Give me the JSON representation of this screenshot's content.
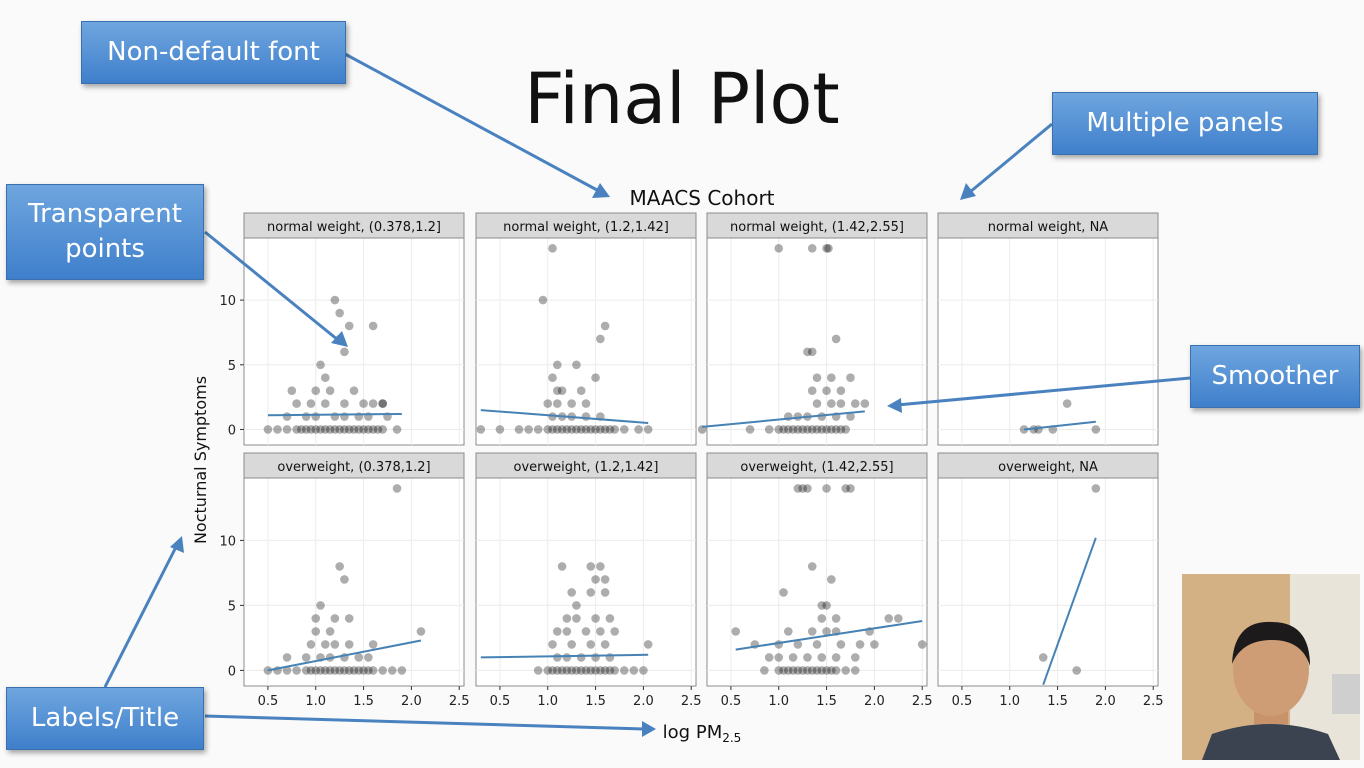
{
  "slide": {
    "title": "Final Plot"
  },
  "callouts": {
    "font": "Non-default font",
    "panels": "Multiple panels",
    "transparent_line1": "Transparent",
    "transparent_line2": "points",
    "smoother": "Smoother",
    "labels": "Labels/Title"
  },
  "colors": {
    "callout_fill": "#4a8ad4",
    "smoother": "#4682b4",
    "strip_fill": "#d9d9d9",
    "point": "#000000"
  },
  "chart_data": {
    "type": "scatter",
    "title": "MAACS Cohort",
    "xlabel_main": "log PM",
    "xlabel_sub": "2.5",
    "ylabel": "Nocturnal Symptoms",
    "xlim": [
      0.25,
      2.55
    ],
    "ylim": [
      -1.2,
      14.8
    ],
    "x_ticks": [
      "0.5",
      "1.0",
      "1.5",
      "2.0",
      "2.5"
    ],
    "y_ticks": [
      "0",
      "5",
      "10"
    ],
    "facets": [
      {
        "label": "normal weight, (0.378,1.2]",
        "points": [
          [
            0.5,
            0
          ],
          [
            0.6,
            0
          ],
          [
            0.7,
            0
          ],
          [
            0.8,
            0
          ],
          [
            0.85,
            0
          ],
          [
            0.9,
            0
          ],
          [
            0.95,
            0
          ],
          [
            1.0,
            0
          ],
          [
            1.05,
            0
          ],
          [
            1.1,
            0
          ],
          [
            1.15,
            0
          ],
          [
            0.7,
            1
          ],
          [
            0.9,
            1
          ],
          [
            1.0,
            1
          ],
          [
            0.8,
            2
          ],
          [
            0.95,
            2
          ],
          [
            1.1,
            2
          ],
          [
            1.0,
            3
          ],
          [
            0.75,
            3
          ],
          [
            1.05,
            5
          ],
          [
            1.1,
            4
          ],
          [
            1.15,
            3
          ],
          [
            1.2,
            0
          ],
          [
            1.25,
            0
          ],
          [
            1.3,
            0
          ],
          [
            1.35,
            0
          ],
          [
            1.4,
            0
          ],
          [
            1.45,
            0
          ],
          [
            1.5,
            0
          ],
          [
            1.55,
            0
          ],
          [
            1.6,
            0
          ],
          [
            1.65,
            0
          ],
          [
            1.7,
            0
          ],
          [
            1.2,
            1
          ],
          [
            1.3,
            1
          ],
          [
            1.45,
            1
          ],
          [
            1.55,
            1
          ],
          [
            1.3,
            2
          ],
          [
            1.5,
            2
          ],
          [
            1.6,
            2
          ],
          [
            1.7,
            2
          ],
          [
            1.4,
            3
          ],
          [
            1.25,
            7
          ],
          [
            1.3,
            6
          ],
          [
            1.35,
            8
          ],
          [
            1.6,
            8
          ],
          [
            1.2,
            10
          ],
          [
            1.25,
            9
          ],
          [
            1.85,
            0
          ],
          [
            1.75,
            1
          ],
          [
            1.7,
            2
          ]
        ],
        "smooth": [
          [
            0.5,
            1.1
          ],
          [
            1.9,
            1.2
          ]
        ]
      },
      {
        "label": "normal weight, (1.2,1.42]",
        "points": [
          [
            0.3,
            0
          ],
          [
            0.5,
            0
          ],
          [
            0.7,
            0
          ],
          [
            0.8,
            0
          ],
          [
            0.9,
            0
          ],
          [
            1.0,
            0
          ],
          [
            1.05,
            0
          ],
          [
            1.1,
            0
          ],
          [
            1.15,
            0
          ],
          [
            1.2,
            0
          ],
          [
            1.25,
            0
          ],
          [
            1.3,
            0
          ],
          [
            1.35,
            0
          ],
          [
            1.4,
            0
          ],
          [
            1.45,
            0
          ],
          [
            1.5,
            0
          ],
          [
            1.55,
            0
          ],
          [
            1.6,
            0
          ],
          [
            1.65,
            0
          ],
          [
            1.7,
            0
          ],
          [
            1.8,
            0
          ],
          [
            1.95,
            0
          ],
          [
            2.05,
            0
          ],
          [
            1.05,
            1
          ],
          [
            1.15,
            1
          ],
          [
            1.25,
            1
          ],
          [
            1.4,
            1
          ],
          [
            1.55,
            1
          ],
          [
            1.0,
            2
          ],
          [
            1.1,
            2
          ],
          [
            1.25,
            2
          ],
          [
            1.4,
            2
          ],
          [
            1.1,
            3
          ],
          [
            1.15,
            3
          ],
          [
            1.35,
            3
          ],
          [
            1.05,
            4
          ],
          [
            1.1,
            5
          ],
          [
            1.3,
            5
          ],
          [
            1.5,
            4
          ],
          [
            1.55,
            7
          ],
          [
            1.6,
            8
          ],
          [
            0.95,
            10
          ],
          [
            1.05,
            14
          ]
        ],
        "smooth": [
          [
            0.3,
            1.5
          ],
          [
            2.05,
            0.5
          ]
        ]
      },
      {
        "label": "normal weight, (1.42,2.55]",
        "points": [
          [
            0.2,
            0
          ],
          [
            0.7,
            0
          ],
          [
            0.9,
            0
          ],
          [
            1.0,
            0
          ],
          [
            1.05,
            0
          ],
          [
            1.1,
            0
          ],
          [
            1.15,
            0
          ],
          [
            1.2,
            0
          ],
          [
            1.25,
            0
          ],
          [
            1.3,
            0
          ],
          [
            1.35,
            0
          ],
          [
            1.4,
            0
          ],
          [
            1.45,
            0
          ],
          [
            1.5,
            0
          ],
          [
            1.55,
            0
          ],
          [
            1.6,
            0
          ],
          [
            1.65,
            0
          ],
          [
            1.7,
            0
          ],
          [
            1.1,
            1
          ],
          [
            1.2,
            1
          ],
          [
            1.3,
            1
          ],
          [
            1.45,
            1
          ],
          [
            1.6,
            1
          ],
          [
            1.75,
            1
          ],
          [
            1.4,
            2
          ],
          [
            1.55,
            2
          ],
          [
            1.65,
            2
          ],
          [
            1.8,
            2
          ],
          [
            1.9,
            2
          ],
          [
            1.35,
            3
          ],
          [
            1.5,
            3
          ],
          [
            1.65,
            3
          ],
          [
            1.4,
            4
          ],
          [
            1.55,
            4
          ],
          [
            1.75,
            4
          ],
          [
            1.3,
            6
          ],
          [
            1.35,
            6
          ],
          [
            1.6,
            7
          ],
          [
            1.0,
            14
          ],
          [
            1.35,
            14
          ],
          [
            1.5,
            14
          ],
          [
            1.52,
            14
          ]
        ],
        "smooth": [
          [
            0.2,
            0.2
          ],
          [
            1.9,
            1.4
          ]
        ]
      },
      {
        "label": "normal weight, NA",
        "points": [
          [
            1.15,
            0
          ],
          [
            1.25,
            0
          ],
          [
            1.3,
            0
          ],
          [
            1.45,
            0
          ],
          [
            1.9,
            0
          ],
          [
            1.6,
            2
          ]
        ],
        "smooth": [
          [
            1.15,
            0
          ],
          [
            1.9,
            0.6
          ]
        ]
      },
      {
        "label": "overweight, (0.378,1.2]",
        "points": [
          [
            0.5,
            0
          ],
          [
            0.6,
            0
          ],
          [
            0.7,
            0
          ],
          [
            0.8,
            0
          ],
          [
            0.9,
            0
          ],
          [
            0.95,
            0
          ],
          [
            1.0,
            0
          ],
          [
            1.05,
            0
          ],
          [
            1.1,
            0
          ],
          [
            1.15,
            0
          ],
          [
            1.2,
            0
          ],
          [
            1.25,
            0
          ],
          [
            1.3,
            0
          ],
          [
            1.35,
            0
          ],
          [
            1.4,
            0
          ],
          [
            1.45,
            0
          ],
          [
            1.5,
            0
          ],
          [
            1.55,
            0
          ],
          [
            1.6,
            0
          ],
          [
            1.7,
            0
          ],
          [
            1.8,
            0
          ],
          [
            1.9,
            0
          ],
          [
            0.7,
            1
          ],
          [
            0.9,
            1
          ],
          [
            1.05,
            1
          ],
          [
            1.15,
            1
          ],
          [
            1.3,
            1
          ],
          [
            1.45,
            1
          ],
          [
            1.55,
            1
          ],
          [
            0.95,
            2
          ],
          [
            1.1,
            2
          ],
          [
            1.2,
            2
          ],
          [
            1.35,
            2
          ],
          [
            1.6,
            2
          ],
          [
            1.0,
            3
          ],
          [
            1.15,
            3
          ],
          [
            1.2,
            4
          ],
          [
            1.35,
            4
          ],
          [
            1.0,
            4
          ],
          [
            1.05,
            5
          ],
          [
            1.25,
            8
          ],
          [
            1.3,
            7
          ],
          [
            1.85,
            14
          ],
          [
            2.1,
            3
          ]
        ],
        "smooth": [
          [
            0.5,
            0
          ],
          [
            2.1,
            2.3
          ]
        ]
      },
      {
        "label": "overweight, (1.2,1.42]",
        "points": [
          [
            0.9,
            0
          ],
          [
            1.0,
            0
          ],
          [
            1.05,
            0
          ],
          [
            1.1,
            0
          ],
          [
            1.15,
            0
          ],
          [
            1.2,
            0
          ],
          [
            1.25,
            0
          ],
          [
            1.3,
            0
          ],
          [
            1.35,
            0
          ],
          [
            1.4,
            0
          ],
          [
            1.45,
            0
          ],
          [
            1.5,
            0
          ],
          [
            1.55,
            0
          ],
          [
            1.6,
            0
          ],
          [
            1.65,
            0
          ],
          [
            1.7,
            0
          ],
          [
            1.8,
            0
          ],
          [
            1.9,
            0
          ],
          [
            2.0,
            0
          ],
          [
            1.1,
            1
          ],
          [
            1.2,
            1
          ],
          [
            1.35,
            1
          ],
          [
            1.5,
            1
          ],
          [
            1.65,
            1
          ],
          [
            1.05,
            2
          ],
          [
            1.25,
            2
          ],
          [
            1.45,
            2
          ],
          [
            1.6,
            2
          ],
          [
            2.05,
            2
          ],
          [
            1.1,
            3
          ],
          [
            1.2,
            3
          ],
          [
            1.4,
            3
          ],
          [
            1.55,
            3
          ],
          [
            1.7,
            3
          ],
          [
            1.2,
            4
          ],
          [
            1.3,
            4
          ],
          [
            1.5,
            4
          ],
          [
            1.65,
            4
          ],
          [
            1.3,
            5
          ],
          [
            1.25,
            6
          ],
          [
            1.45,
            6
          ],
          [
            1.6,
            6
          ],
          [
            1.5,
            7
          ],
          [
            1.6,
            7
          ],
          [
            1.15,
            8
          ],
          [
            1.45,
            8
          ],
          [
            1.55,
            8
          ]
        ],
        "smooth": [
          [
            0.3,
            1.0
          ],
          [
            2.05,
            1.2
          ]
        ]
      },
      {
        "label": "overweight, (1.42,2.55]",
        "points": [
          [
            0.55,
            3
          ],
          [
            0.75,
            2
          ],
          [
            0.85,
            0
          ],
          [
            0.9,
            1
          ],
          [
            1.0,
            0
          ],
          [
            1.05,
            0
          ],
          [
            1.1,
            0
          ],
          [
            1.15,
            0
          ],
          [
            1.2,
            0
          ],
          [
            1.25,
            0
          ],
          [
            1.3,
            0
          ],
          [
            1.35,
            0
          ],
          [
            1.4,
            0
          ],
          [
            1.45,
            0
          ],
          [
            1.5,
            0
          ],
          [
            1.55,
            0
          ],
          [
            1.6,
            0
          ],
          [
            1.7,
            0
          ],
          [
            1.8,
            0
          ],
          [
            1.0,
            1
          ],
          [
            1.15,
            1
          ],
          [
            1.3,
            1
          ],
          [
            1.45,
            1
          ],
          [
            1.6,
            1
          ],
          [
            1.8,
            1
          ],
          [
            1.0,
            2
          ],
          [
            1.2,
            2
          ],
          [
            1.4,
            2
          ],
          [
            1.65,
            2
          ],
          [
            1.85,
            2
          ],
          [
            2.0,
            2
          ],
          [
            2.5,
            2
          ],
          [
            1.1,
            3
          ],
          [
            1.35,
            3
          ],
          [
            1.5,
            3
          ],
          [
            1.6,
            3
          ],
          [
            1.95,
            3
          ],
          [
            2.15,
            4
          ],
          [
            2.25,
            4
          ],
          [
            1.45,
            4
          ],
          [
            1.05,
            6
          ],
          [
            1.6,
            4
          ],
          [
            1.45,
            5
          ],
          [
            1.5,
            5
          ],
          [
            1.35,
            8
          ],
          [
            1.55,
            7
          ],
          [
            1.2,
            14
          ],
          [
            1.25,
            14
          ],
          [
            1.3,
            14
          ],
          [
            1.5,
            14
          ],
          [
            1.7,
            14
          ],
          [
            1.75,
            14
          ]
        ],
        "smooth": [
          [
            0.55,
            1.6
          ],
          [
            2.5,
            3.8
          ]
        ]
      },
      {
        "label": "overweight, NA",
        "points": [
          [
            1.35,
            1
          ],
          [
            1.7,
            0
          ],
          [
            1.9,
            14
          ]
        ],
        "smooth": [
          [
            1.35,
            -1.1
          ],
          [
            1.9,
            10.2
          ]
        ]
      }
    ]
  }
}
